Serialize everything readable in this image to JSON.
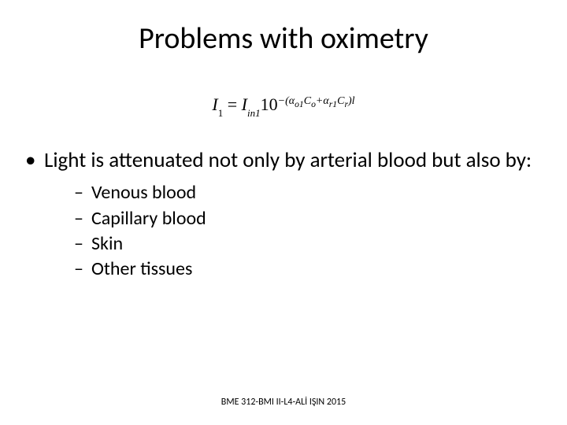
{
  "title": "Problems with oximetry",
  "equation": {
    "lhs_var": "I",
    "lhs_sub": "1",
    "eq": " = ",
    "rhs_var": "I",
    "rhs_sub": "in1",
    "base": "10",
    "exp_prefix": "−(",
    "a1": "α",
    "a1sub": "o1",
    "c1": "C",
    "c1sub": "o",
    "plus": "+",
    "a2": "α",
    "a2sub": "r1",
    "c2": "C",
    "c2sub": "r",
    "exp_suffix": ")",
    "ell": "l"
  },
  "bullet": "Light is attenuated not only by arterial blood but also by:",
  "subitems": [
    "Venous blood",
    "Capillary blood",
    "Skin",
    "Other tissues"
  ],
  "footer": "BME 312-BMI II-L4-ALİ IŞIN 2015",
  "style": {
    "background_color": "#ffffff",
    "text_color": "#000000",
    "title_fontsize": 38,
    "body_fontsize": 27,
    "sub_fontsize": 24,
    "footer_fontsize": 12
  }
}
